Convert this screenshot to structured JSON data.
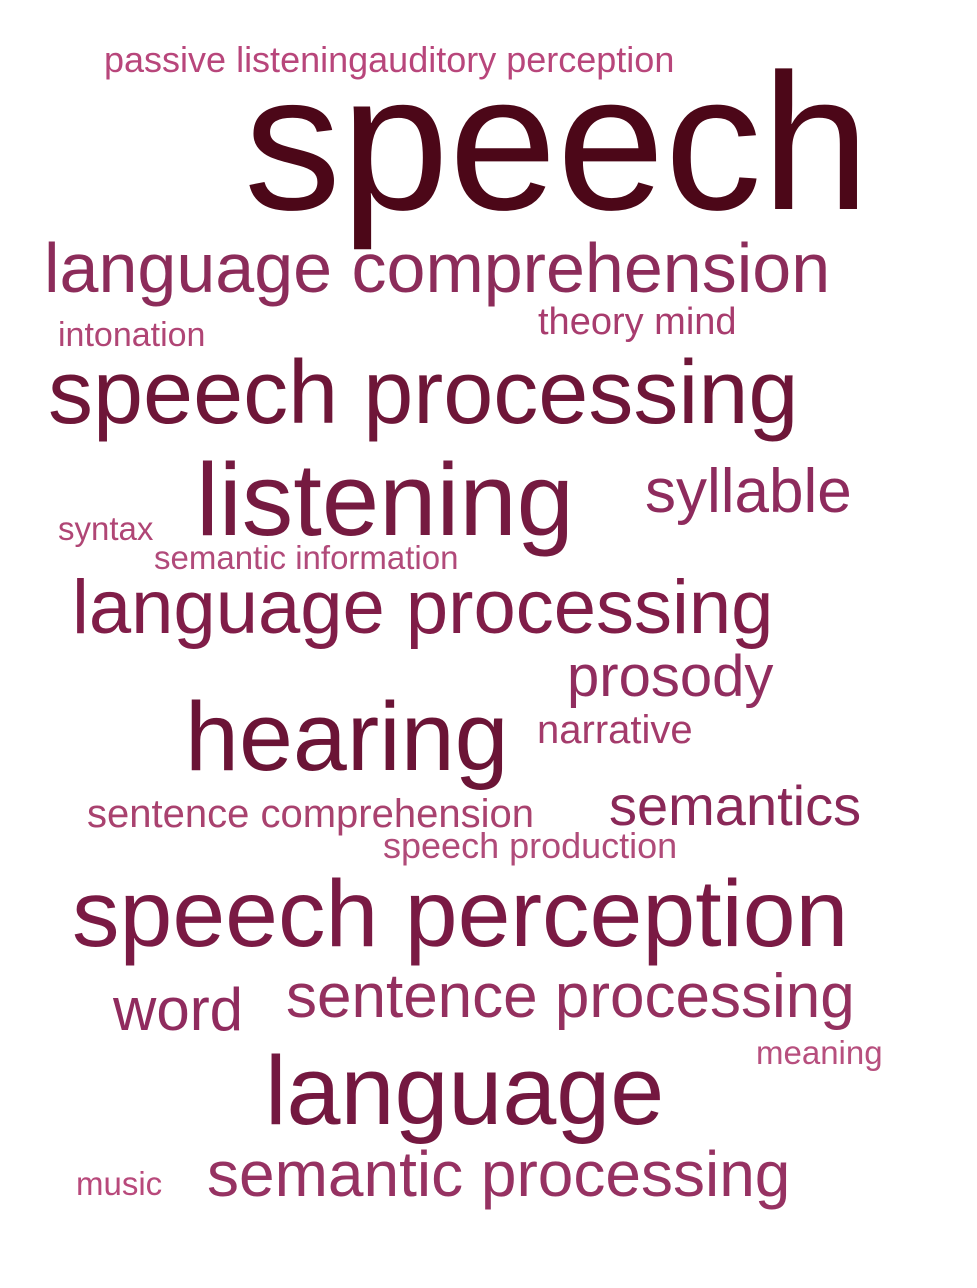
{
  "cloud": {
    "words": [
      {
        "text": "passive listeningauditory perception",
        "color": "#b8467b"
      },
      {
        "text": "speech",
        "color": "#4c0718"
      },
      {
        "text": "language comprehension",
        "color": "#8c2c5a"
      },
      {
        "text": "theory mind",
        "color": "#a83c6e"
      },
      {
        "text": "intonation",
        "color": "#b04575"
      },
      {
        "text": "speech processing",
        "color": "#6e1638"
      },
      {
        "text": "listening",
        "color": "#751a40"
      },
      {
        "text": "syllable",
        "color": "#8e2b5d"
      },
      {
        "text": "syntax",
        "color": "#b04675"
      },
      {
        "text": "semantic information",
        "color": "#b14a7a"
      },
      {
        "text": "language processing",
        "color": "#801d48"
      },
      {
        "text": "prosody",
        "color": "#912d5f"
      },
      {
        "text": "hearing",
        "color": "#6b1436"
      },
      {
        "text": "narrative",
        "color": "#a43b6b"
      },
      {
        "text": "semantics",
        "color": "#8a2858"
      },
      {
        "text": "sentence comprehension",
        "color": "#a9426f"
      },
      {
        "text": "speech production",
        "color": "#b04b79"
      },
      {
        "text": "speech perception",
        "color": "#7a1a44"
      },
      {
        "text": "word",
        "color": "#902b5e"
      },
      {
        "text": "sentence processing",
        "color": "#94305f"
      },
      {
        "text": "meaning",
        "color": "#b74f7e"
      },
      {
        "text": "language",
        "color": "#741840"
      },
      {
        "text": "music",
        "color": "#b8497b"
      },
      {
        "text": "semantic processing",
        "color": "#963262"
      }
    ]
  }
}
